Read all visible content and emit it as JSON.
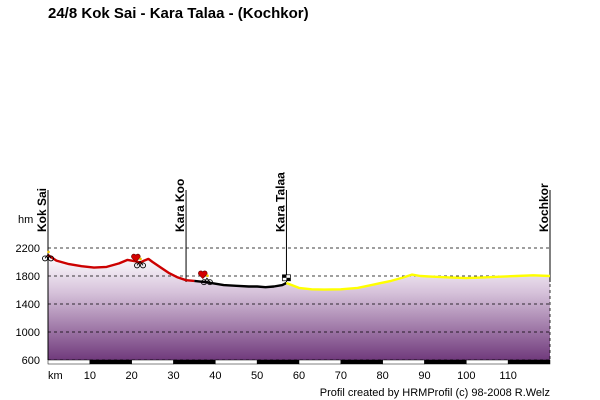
{
  "title": "24/8 Kok Sai - Kara Talaa - (Kochkor)",
  "footer": "Profil created by HRMProfil (c) 98-2008 R.Welz",
  "chart_data": {
    "type": "area",
    "title": "24/8 Kok Sai - Kara Talaa - (Kochkor)",
    "ylabel": "hm",
    "xlabel": "km",
    "xlim": [
      0,
      120
    ],
    "ylim": [
      600,
      2200
    ],
    "grid": true,
    "x_ticks": [
      "10",
      "20",
      "30",
      "40",
      "50",
      "60",
      "70",
      "80",
      "90",
      "100",
      "110"
    ],
    "y_ticks": [
      "2200",
      "1800",
      "1400",
      "1000",
      "600"
    ],
    "waypoints": [
      {
        "name": "Kok Sai",
        "km": 0
      },
      {
        "name": "Kara Koo",
        "km": 33
      },
      {
        "name": "Kara Talaa",
        "km": 57
      },
      {
        "name": "Kochkor",
        "km": 120
      }
    ],
    "series": [
      {
        "color": "#cc0000",
        "x": [
          0,
          2,
          5,
          8,
          11,
          14,
          17,
          19,
          21,
          22,
          23,
          24,
          25,
          27,
          29,
          31,
          33,
          35
        ],
        "y": [
          2100,
          2020,
          1970,
          1940,
          1920,
          1930,
          1980,
          2030,
          2010,
          1990,
          2020,
          2045,
          2000,
          1920,
          1840,
          1780,
          1740,
          1730
        ]
      },
      {
        "color": "#000000",
        "x": [
          35,
          38,
          40,
          42,
          45,
          48,
          50,
          52,
          54,
          56,
          57
        ],
        "y": [
          1730,
          1710,
          1690,
          1670,
          1660,
          1650,
          1650,
          1640,
          1650,
          1670,
          1700
        ]
      },
      {
        "color": "#ffff00",
        "x": [
          57,
          60,
          63,
          66,
          70,
          74,
          78,
          82,
          85,
          87,
          89,
          92,
          96,
          100,
          104,
          108,
          112,
          116,
          120
        ],
        "y": [
          1700,
          1630,
          1610,
          1605,
          1610,
          1630,
          1680,
          1730,
          1780,
          1820,
          1800,
          1790,
          1780,
          1770,
          1780,
          1790,
          1800,
          1810,
          1800
        ]
      }
    ],
    "markers": [
      {
        "type": "cyclist",
        "km": 0,
        "elev": 2080
      },
      {
        "type": "heart",
        "km": 21,
        "elev": 2060
      },
      {
        "type": "cyclist",
        "km": 22,
        "elev": 1980
      },
      {
        "type": "heart",
        "km": 37,
        "elev": 1820
      },
      {
        "type": "cyclist",
        "km": 38,
        "elev": 1740
      },
      {
        "type": "flag",
        "km": 57,
        "elev": 1760
      }
    ]
  }
}
